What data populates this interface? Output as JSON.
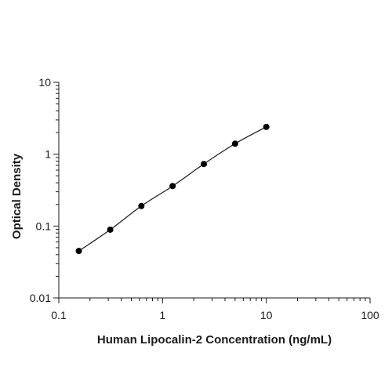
{
  "chart_data": {
    "type": "scatter",
    "title": "",
    "xlabel": "Human Lipocalin-2 Concentration (ng/mL)",
    "ylabel": "Optical Density",
    "x_scale": "log",
    "y_scale": "log",
    "xlim": [
      0.1,
      100
    ],
    "ylim": [
      0.01,
      10
    ],
    "x_ticks": [
      "0.1",
      "1",
      "10",
      "100"
    ],
    "y_ticks": [
      "0.01",
      "0.1",
      "1",
      "10"
    ],
    "grid": false,
    "legend": "none",
    "fit_curve": true,
    "series": [
      {
        "x": [
          0.156,
          0.313,
          0.625,
          1.25,
          2.5,
          5,
          10
        ],
        "y": [
          0.045,
          0.089,
          0.19,
          0.36,
          0.73,
          1.4,
          2.4
        ]
      }
    ],
    "colors": {
      "points": "#000000",
      "axis": "#1a1a1a",
      "curve": "#1a1a1a"
    }
  }
}
